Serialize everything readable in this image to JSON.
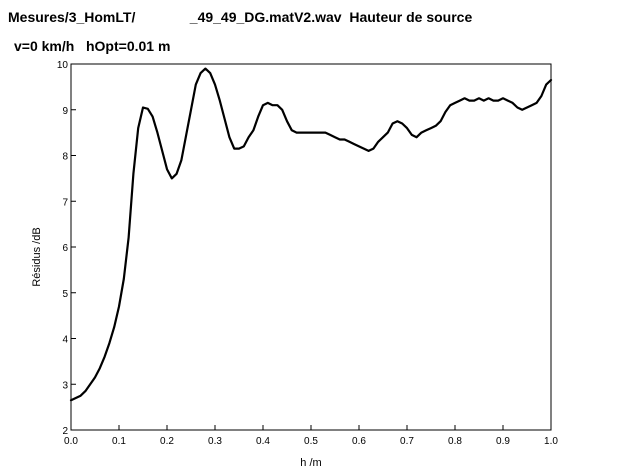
{
  "header": {
    "title_line1": "Mesures/3_HomLT/              _49_49_DG.matV2.wav  Hauteur de source",
    "title_line2": "v=0 km/h   hOpt=0.01 m"
  },
  "chart_data": {
    "type": "line",
    "xlabel": "h /m",
    "ylabel": "Résidus /dB",
    "xlim": [
      0,
      1
    ],
    "ylim": [
      2,
      10
    ],
    "xticks": [
      "0.0",
      "0.1",
      "0.2",
      "0.3",
      "0.4",
      "0.5",
      "0.6",
      "0.7",
      "0.8",
      "0.9",
      "1.0"
    ],
    "yticks": [
      "2",
      "3",
      "4",
      "5",
      "6",
      "7",
      "8",
      "9",
      "10"
    ],
    "grid": false,
    "line_color": "#000000",
    "series": [
      {
        "x": [
          0.0,
          0.01,
          0.02,
          0.03,
          0.04,
          0.05,
          0.06,
          0.07,
          0.08,
          0.09,
          0.1,
          0.11,
          0.12,
          0.13,
          0.14,
          0.15,
          0.16,
          0.17,
          0.18,
          0.19,
          0.2,
          0.21,
          0.22,
          0.23,
          0.24,
          0.25,
          0.26,
          0.27,
          0.28,
          0.29,
          0.3,
          0.31,
          0.32,
          0.33,
          0.34,
          0.35,
          0.36,
          0.37,
          0.38,
          0.39,
          0.4,
          0.41,
          0.42,
          0.43,
          0.44,
          0.45,
          0.46,
          0.47,
          0.48,
          0.49,
          0.5,
          0.51,
          0.52,
          0.53,
          0.54,
          0.55,
          0.56,
          0.57,
          0.58,
          0.59,
          0.6,
          0.61,
          0.62,
          0.63,
          0.64,
          0.65,
          0.66,
          0.67,
          0.68,
          0.69,
          0.7,
          0.71,
          0.72,
          0.73,
          0.74,
          0.75,
          0.76,
          0.77,
          0.78,
          0.79,
          0.8,
          0.81,
          0.82,
          0.83,
          0.84,
          0.85,
          0.86,
          0.87,
          0.88,
          0.89,
          0.9,
          0.91,
          0.92,
          0.93,
          0.94,
          0.95,
          0.96,
          0.97,
          0.98,
          0.99,
          1.0
        ],
        "y": [
          2.65,
          2.7,
          2.75,
          2.85,
          3.0,
          3.15,
          3.35,
          3.6,
          3.9,
          4.25,
          4.7,
          5.3,
          6.2,
          7.6,
          8.6,
          9.05,
          9.02,
          8.85,
          8.5,
          8.1,
          7.7,
          7.5,
          7.6,
          7.9,
          8.45,
          9.0,
          9.55,
          9.8,
          9.9,
          9.8,
          9.55,
          9.2,
          8.8,
          8.4,
          8.15,
          8.15,
          8.2,
          8.4,
          8.55,
          8.85,
          9.1,
          9.15,
          9.1,
          9.1,
          9.0,
          8.75,
          8.55,
          8.5,
          8.5,
          8.5,
          8.5,
          8.5,
          8.5,
          8.5,
          8.45,
          8.4,
          8.35,
          8.35,
          8.3,
          8.25,
          8.2,
          8.15,
          8.1,
          8.15,
          8.3,
          8.4,
          8.5,
          8.7,
          8.75,
          8.7,
          8.6,
          8.45,
          8.4,
          8.5,
          8.55,
          8.6,
          8.65,
          8.75,
          8.95,
          9.1,
          9.15,
          9.2,
          9.25,
          9.2,
          9.2,
          9.25,
          9.2,
          9.25,
          9.2,
          9.2,
          9.25,
          9.2,
          9.15,
          9.05,
          9.0,
          9.05,
          9.1,
          9.15,
          9.3,
          9.55,
          9.65
        ]
      }
    ]
  }
}
